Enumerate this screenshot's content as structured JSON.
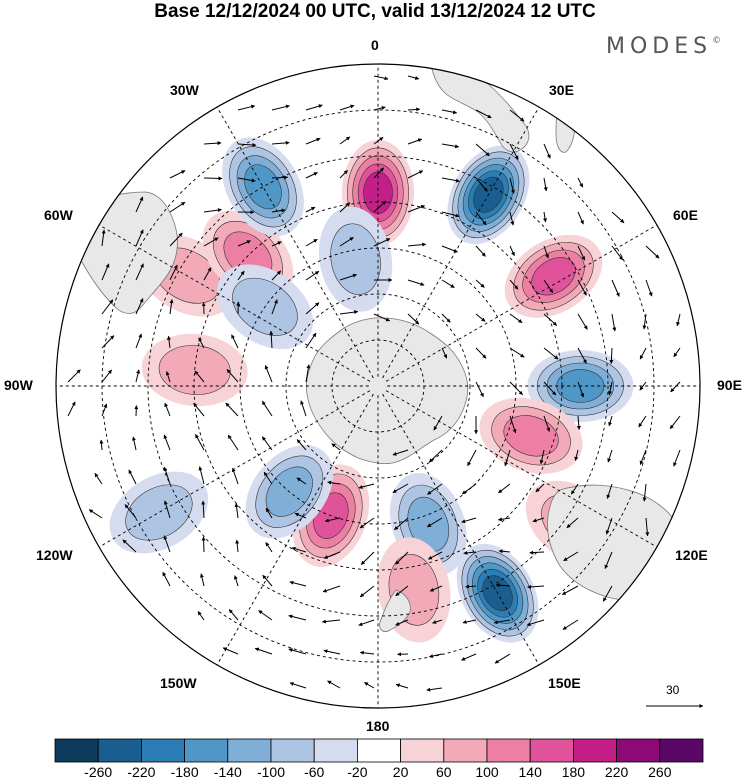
{
  "title": "Base 12/12/2024 00 UTC, valid 13/12/2024 12 UTC",
  "brand": {
    "name": "MODES",
    "mark": "©"
  },
  "longitude_labels": [
    "0",
    "30E",
    "60E",
    "90E",
    "120E",
    "150E",
    "180",
    "150W",
    "120W",
    "90W",
    "60W",
    "30W"
  ],
  "reference_vector": {
    "label": "30"
  },
  "colorbar": {
    "ticks": [
      "-260",
      "-220",
      "-180",
      "-140",
      "-100",
      "-60",
      "-20",
      "20",
      "60",
      "100",
      "140",
      "180",
      "220",
      "260"
    ],
    "colors": [
      "#0d3b5e",
      "#1a5e8f",
      "#2a7db5",
      "#4e97c7",
      "#7faed6",
      "#adc4e2",
      "#d6dcef",
      "#ffffff",
      "#f7d3d8",
      "#f2aab8",
      "#ec7fa3",
      "#e0529a",
      "#c41f88",
      "#8e0a76",
      "#5b0768"
    ]
  },
  "colors": {
    "positive": "#ec7fa3",
    "negative": "#2a7db5",
    "land": "#e8e8e8"
  },
  "anomalies": [
    {
      "lon": 0,
      "lat": -48,
      "value": 180
    },
    {
      "lon": 30,
      "lat": -42,
      "value": -220
    },
    {
      "lon": 58,
      "lat": -45,
      "value": 150
    },
    {
      "lon": 90,
      "lat": -46,
      "value": -140
    },
    {
      "lon": 108,
      "lat": -55,
      "value": 100
    },
    {
      "lon": 125,
      "lat": -38,
      "value": 60
    },
    {
      "lon": 150,
      "lat": -38,
      "value": -220
    },
    {
      "lon": 160,
      "lat": -58,
      "value": -100
    },
    {
      "lon": -160,
      "lat": -60,
      "value": 140
    },
    {
      "lon": -140,
      "lat": -60,
      "value": -100
    },
    {
      "lon": -120,
      "lat": -35,
      "value": -60
    },
    {
      "lon": -60,
      "lat": -42,
      "value": 60
    },
    {
      "lon": -45,
      "lat": -50,
      "value": 100
    },
    {
      "lon": -30,
      "lat": -40,
      "value": -140
    },
    {
      "lon": -55,
      "lat": -60,
      "value": -60
    },
    {
      "lon": -85,
      "lat": -50,
      "value": 60
    },
    {
      "lon": -10,
      "lat": -62,
      "value": -80
    },
    {
      "lon": 170,
      "lat": -45,
      "value": 60
    }
  ]
}
